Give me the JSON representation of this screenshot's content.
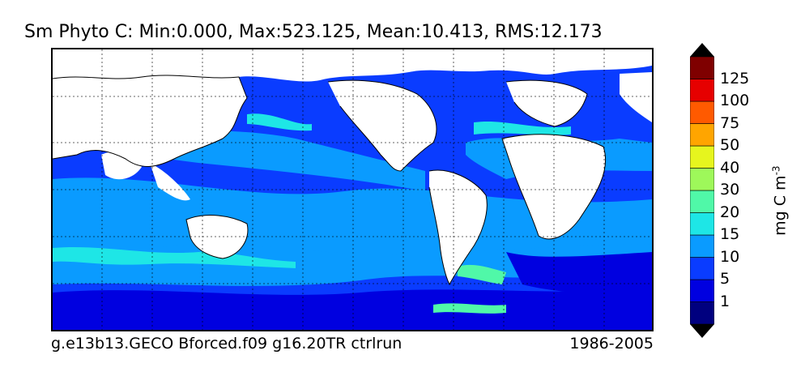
{
  "title": "Sm Phyto C: Min:0.000, Max:523.125, Mean:10.413, RMS:12.173",
  "footer": {
    "run": "g.e13b13.GECO Bforced.f09 g16.20TR ctrlrun",
    "period": "1986-2005"
  },
  "colorbar": {
    "units_label": "mg C m",
    "units_exponent": "-3",
    "levels": [
      "1",
      "5",
      "10",
      "15",
      "20",
      "30",
      "40",
      "50",
      "75",
      "100",
      "125"
    ],
    "colors": [
      "#00007f",
      "#0000e0",
      "#0a3cff",
      "#0a9bff",
      "#1ee6e6",
      "#50f8a8",
      "#9ef85a",
      "#e6f51e",
      "#ffa500",
      "#ff5a00",
      "#e60000",
      "#7f0000"
    ]
  },
  "map_colors": {
    "land": "#ffffff",
    "coast": "#000000",
    "grid": "#000000"
  }
}
